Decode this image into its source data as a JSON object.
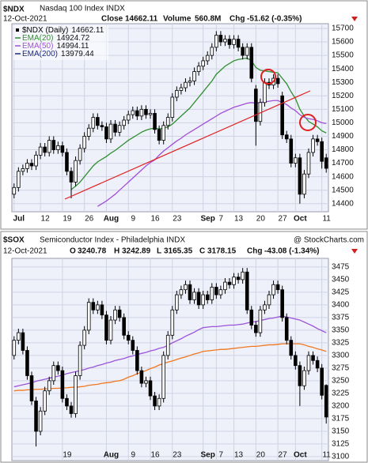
{
  "chart_data": [
    {
      "type": "candlestick",
      "title": "$NDX",
      "subtitle": "Nasdaq 100 Index  INDX",
      "date": "12-Oct-2021",
      "header": {
        "close_label": "Close",
        "volume_label": "Volume",
        "volume": "560.8M",
        "chg_label": "Chg",
        "chg": "-51.62 (-0.35%)"
      },
      "legend": "top-left",
      "legend_label": "$NDX (Daily)",
      "grid": true,
      "categories": [
        "Jul",
        null,
        null,
        null,
        null,
        null,
        "12",
        null,
        null,
        null,
        null,
        "19",
        null,
        null,
        null,
        null,
        "26",
        null,
        null,
        null,
        null,
        "Aug",
        null,
        null,
        null,
        null,
        "9",
        null,
        null,
        null,
        null,
        "16",
        null,
        null,
        null,
        null,
        "23",
        null,
        null,
        null,
        null,
        null,
        null,
        "Sep",
        null,
        null,
        "7",
        null,
        null,
        null,
        "13",
        null,
        null,
        null,
        null,
        "20",
        null,
        null,
        null,
        null,
        "27",
        null,
        null,
        null,
        "Oct",
        null,
        null,
        null,
        null,
        null,
        "11",
        null
      ],
      "open": [
        14470,
        14520,
        14640,
        14660,
        14700,
        14680,
        14760,
        14820,
        14780,
        14870,
        14800,
        14830,
        14780,
        14640,
        14560,
        14720,
        14810,
        14900,
        14960,
        15040,
        14980,
        14970,
        14880,
        14990,
        14930,
        14980,
        15020,
        15060,
        15090,
        15050,
        15100,
        15060,
        15070,
        14950,
        14870,
        14980,
        15040,
        15190,
        15240,
        15260,
        15300,
        15310,
        15380,
        15420,
        15460,
        15500,
        15560,
        15650,
        15600,
        15620,
        15580,
        15620,
        15560,
        15500,
        15560,
        15250,
        15010,
        15150,
        15300,
        15280,
        15330,
        15200,
        14910,
        14880,
        14700,
        14740,
        14470,
        14620,
        14780,
        14880,
        14860,
        14740
      ],
      "high": [
        14550,
        14670,
        14690,
        14730,
        14730,
        14790,
        14850,
        14850,
        14900,
        14900,
        14860,
        14860,
        14810,
        14670,
        14750,
        14840,
        14930,
        14990,
        15070,
        15070,
        15010,
        15000,
        15020,
        15020,
        15010,
        15050,
        15090,
        15120,
        15120,
        15130,
        15130,
        15100,
        15100,
        14980,
        15010,
        15070,
        15220,
        15270,
        15290,
        15330,
        15340,
        15410,
        15450,
        15490,
        15530,
        15590,
        15680,
        15680,
        15650,
        15650,
        15650,
        15650,
        15590,
        15590,
        15590,
        15280,
        15180,
        15330,
        15330,
        15360,
        15360,
        15230,
        14940,
        14910,
        14770,
        14770,
        14650,
        14810,
        14910,
        14910,
        14890,
        14770
      ],
      "low": [
        14440,
        14490,
        14610,
        14630,
        14650,
        14650,
        14730,
        14750,
        14750,
        14770,
        14770,
        14750,
        14610,
        14440,
        14530,
        14690,
        14780,
        14870,
        14930,
        14950,
        14940,
        14850,
        14850,
        14900,
        14900,
        14950,
        14990,
        15030,
        15020,
        15020,
        15030,
        15030,
        14920,
        14840,
        14840,
        14950,
        15010,
        15160,
        15210,
        15230,
        15270,
        15280,
        15350,
        15390,
        15430,
        15470,
        15530,
        15570,
        15570,
        15550,
        15550,
        15530,
        15470,
        15470,
        15300,
        14830,
        14980,
        15120,
        15250,
        15250,
        15260,
        14880,
        14850,
        14670,
        14670,
        14400,
        14440,
        14590,
        14750,
        14830,
        14660,
        14630
      ],
      "close": [
        14520,
        14640,
        14660,
        14700,
        14680,
        14760,
        14820,
        14780,
        14870,
        14800,
        14830,
        14780,
        14640,
        14560,
        14720,
        14810,
        14900,
        14960,
        15040,
        14980,
        14970,
        14880,
        14990,
        14930,
        14980,
        15020,
        15060,
        15090,
        15050,
        15100,
        15060,
        15070,
        14950,
        14870,
        14980,
        15040,
        15190,
        15240,
        15260,
        15300,
        15310,
        15380,
        15420,
        15460,
        15500,
        15560,
        15650,
        15600,
        15620,
        15580,
        15620,
        15560,
        15500,
        15560,
        15330,
        15010,
        15150,
        15300,
        15280,
        15330,
        15290,
        14910,
        14880,
        14700,
        14740,
        14470,
        14620,
        14780,
        14880,
        14860,
        14713.73,
        14662.11
      ],
      "series": [
        {
          "name": "EMA(20)",
          "color": "#2f8f2f",
          "values": [
            null,
            null,
            null,
            null,
            null,
            null,
            null,
            null,
            null,
            null,
            null,
            null,
            null,
            14505,
            14530,
            14560,
            14600,
            14640,
            14680,
            14710,
            14730,
            14750,
            14775,
            14795,
            14820,
            14845,
            14870,
            14890,
            14910,
            14930,
            14945,
            14955,
            14960,
            14955,
            14960,
            14970,
            14990,
            15020,
            15050,
            15080,
            15110,
            15150,
            15190,
            15230,
            15270,
            15310,
            15360,
            15390,
            15420,
            15440,
            15460,
            15470,
            15475,
            15480,
            15460,
            15410,
            15390,
            15385,
            15380,
            15375,
            15370,
            15330,
            15290,
            15230,
            15180,
            15100,
            15050,
            15010,
            14990,
            14970,
            14940,
            14924.72
          ]
        },
        {
          "name": "EMA(50)",
          "color": "#a24fd8",
          "values": [
            null,
            null,
            null,
            null,
            null,
            null,
            null,
            null,
            null,
            null,
            null,
            null,
            null,
            null,
            null,
            null,
            null,
            null,
            null,
            14380,
            14400,
            14420,
            14445,
            14470,
            14500,
            14530,
            14560,
            14590,
            14620,
            14650,
            14680,
            14705,
            14725,
            14760,
            14790,
            14815,
            14840,
            14865,
            14885,
            14910,
            14930,
            14950,
            14970,
            14990,
            15010,
            15030,
            15050,
            15070,
            15085,
            15100,
            15115,
            15125,
            15135,
            15145,
            15150,
            15145,
            15150,
            15155,
            15160,
            15165,
            15165,
            15150,
            15135,
            15110,
            15090,
            15060,
            15040,
            15030,
            15025,
            15015,
            15000,
            14994.11
          ]
        }
      ],
      "offscale_series": [
        {
          "name": "EMA(200)",
          "color": "#1a2a80",
          "last": 13979.44
        }
      ],
      "ylim": [
        14340,
        15735
      ],
      "yticks": [
        14400,
        14500,
        14600,
        14700,
        14800,
        14900,
        15000,
        15100,
        15200,
        15300,
        15400,
        15500,
        15600,
        15700
      ]
    },
    {
      "type": "candlestick",
      "title": "$SOX",
      "subtitle": "Semiconductor Index - Philadelphia  INDX",
      "date": "12-Oct-2021",
      "credit": "@ StockCharts.com",
      "header": {
        "ohlc_labels": [
          "O",
          "H",
          "L",
          "C"
        ],
        "chg_label": "Chg",
        "chg": "-43.08 (-1.34%)"
      },
      "grid": true,
      "categories": [
        null,
        null,
        null,
        null,
        null,
        null,
        null,
        null,
        null,
        null,
        null,
        "19",
        null,
        null,
        null,
        null,
        null,
        null,
        null,
        null,
        null,
        "Aug",
        null,
        null,
        null,
        null,
        "9",
        null,
        null,
        null,
        null,
        "16",
        null,
        null,
        null,
        null,
        "23",
        null,
        null,
        null,
        null,
        null,
        null,
        "Sep",
        null,
        null,
        "7",
        null,
        null,
        null,
        "13",
        null,
        null,
        null,
        null,
        "20",
        null,
        null,
        null,
        null,
        "27",
        null,
        null,
        null,
        "Oct",
        null,
        null,
        null,
        null,
        null,
        "11",
        null
      ],
      "open": [
        3300,
        3330,
        3345,
        3310,
        3260,
        3210,
        3150,
        3190,
        3230,
        3250,
        3280,
        3270,
        3215,
        3200,
        3185,
        3260,
        3320,
        3350,
        3405,
        3390,
        3400,
        3380,
        3330,
        3370,
        3390,
        3375,
        3340,
        3330,
        3310,
        3270,
        3245,
        3250,
        3220,
        3200,
        3215,
        3300,
        3340,
        3390,
        3420,
        3430,
        3440,
        3410,
        3425,
        3400,
        3420,
        3410,
        3435,
        3420,
        3430,
        3445,
        3440,
        3455,
        3450,
        3465,
        3390,
        3360,
        3345,
        3390,
        3400,
        3420,
        3440,
        3430,
        3375,
        3330,
        3300,
        3280,
        3240,
        3270,
        3300,
        3290,
        3275,
        3240.78
      ],
      "high": [
        3338,
        3353,
        3353,
        3318,
        3268,
        3218,
        3198,
        3238,
        3258,
        3288,
        3288,
        3278,
        3223,
        3208,
        3268,
        3328,
        3358,
        3413,
        3413,
        3408,
        3408,
        3388,
        3378,
        3398,
        3398,
        3383,
        3348,
        3338,
        3318,
        3278,
        3258,
        3258,
        3228,
        3223,
        3308,
        3348,
        3398,
        3428,
        3438,
        3448,
        3448,
        3433,
        3433,
        3428,
        3428,
        3443,
        3443,
        3438,
        3453,
        3453,
        3463,
        3463,
        3473,
        3473,
        3398,
        3368,
        3398,
        3408,
        3428,
        3448,
        3448,
        3438,
        3383,
        3338,
        3308,
        3288,
        3278,
        3308,
        3308,
        3298,
        3283,
        3242.89
      ],
      "low": [
        3292,
        3322,
        3302,
        3252,
        3202,
        3120,
        3142,
        3182,
        3222,
        3242,
        3262,
        3207,
        3192,
        3177,
        3177,
        3252,
        3312,
        3342,
        3382,
        3382,
        3372,
        3322,
        3322,
        3362,
        3367,
        3332,
        3322,
        3302,
        3262,
        3237,
        3237,
        3212,
        3192,
        3192,
        3207,
        3292,
        3332,
        3382,
        3412,
        3422,
        3402,
        3402,
        3392,
        3392,
        3402,
        3402,
        3412,
        3412,
        3422,
        3432,
        3432,
        3442,
        3442,
        3382,
        3352,
        3337,
        3337,
        3382,
        3392,
        3412,
        3422,
        3367,
        3322,
        3292,
        3272,
        3200,
        3232,
        3262,
        3282,
        3267,
        3213,
        3165.35
      ],
      "close": [
        3330,
        3345,
        3310,
        3260,
        3210,
        3150,
        3190,
        3230,
        3250,
        3280,
        3270,
        3215,
        3200,
        3185,
        3260,
        3320,
        3350,
        3405,
        3390,
        3400,
        3380,
        3330,
        3370,
        3390,
        3375,
        3340,
        3330,
        3310,
        3270,
        3245,
        3250,
        3220,
        3200,
        3215,
        3300,
        3340,
        3390,
        3420,
        3430,
        3440,
        3410,
        3425,
        3400,
        3420,
        3410,
        3435,
        3420,
        3430,
        3445,
        3440,
        3455,
        3450,
        3465,
        3390,
        3360,
        3345,
        3390,
        3400,
        3420,
        3440,
        3430,
        3375,
        3330,
        3300,
        3280,
        3240,
        3270,
        3300,
        3290,
        3275,
        3221.23,
        3178.15
      ],
      "series": [
        {
          "color": "#9a55d8",
          "values": [
            3238,
            3240,
            3242,
            3244,
            3246,
            3249,
            3251,
            3253,
            3255,
            3257,
            3259,
            3261,
            3264,
            3266,
            3268,
            3270,
            3272,
            3275,
            3277,
            3280,
            3282,
            3285,
            3287,
            3290,
            3292,
            3294,
            3297,
            3299,
            3302,
            3304,
            3306,
            3309,
            3311,
            3314,
            3316,
            3320,
            3325,
            3329,
            3333,
            3338,
            3342,
            3346,
            3351,
            3355,
            3356,
            3357,
            3357,
            3358,
            3359,
            3360,
            3360,
            3361,
            3362,
            3364,
            3366,
            3367,
            3369,
            3371,
            3373,
            3374,
            3376,
            3378,
            3376,
            3374,
            3372,
            3370,
            3366,
            3362,
            3358,
            3353,
            3349,
            3345
          ]
        },
        {
          "color": "#f07820",
          "values": [
            3230,
            3231,
            3231,
            3232,
            3232,
            3233,
            3233,
            3234,
            3234,
            3235,
            3235,
            3236,
            3236,
            3237,
            3237,
            3238,
            3239,
            3241,
            3242,
            3243,
            3245,
            3246,
            3247,
            3249,
            3250,
            3253,
            3257,
            3260,
            3264,
            3267,
            3270,
            3274,
            3277,
            3281,
            3284,
            3287,
            3289,
            3292,
            3295,
            3297,
            3300,
            3303,
            3305,
            3308,
            3309,
            3310,
            3311,
            3312,
            3312,
            3313,
            3314,
            3315,
            3316,
            3317,
            3318,
            3318,
            3319,
            3320,
            3321,
            3321,
            3322,
            3323,
            3323,
            3323,
            3323,
            3323,
            3321,
            3318,
            3316,
            3313,
            3311,
            3308
          ]
        }
      ],
      "ylim": [
        3092,
        3492
      ],
      "yticks": [
        3100,
        3125,
        3150,
        3175,
        3200,
        3225,
        3250,
        3275,
        3300,
        3325,
        3350,
        3375,
        3400,
        3425,
        3450,
        3475
      ]
    }
  ]
}
